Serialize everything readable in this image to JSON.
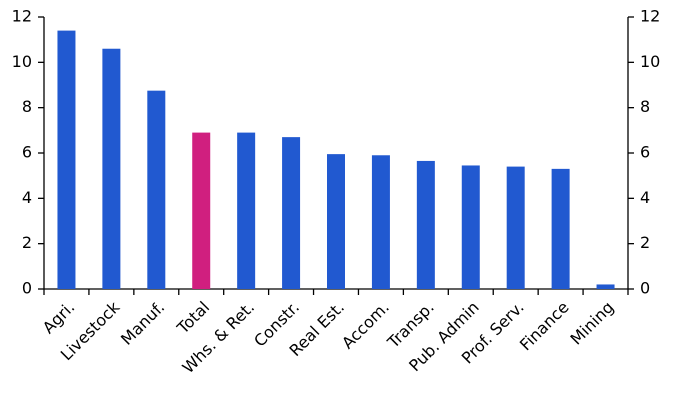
{
  "chart_data": {
    "type": "bar",
    "categories": [
      "Agri.",
      "Livestock",
      "Manuf.",
      "Total",
      "Whs. & Ret.",
      "Constr.",
      "Real Est.",
      "Accom.",
      "Transp.",
      "Pub. Admin",
      "Prof. Serv.",
      "Finance",
      "Mining"
    ],
    "values": [
      11.4,
      10.6,
      8.75,
      6.9,
      6.9,
      6.7,
      5.95,
      5.9,
      5.65,
      5.45,
      5.4,
      5.3,
      0.2
    ],
    "colors": [
      "#2159d0",
      "#2159d0",
      "#2159d0",
      "#d01f7f",
      "#2159d0",
      "#2159d0",
      "#2159d0",
      "#2159d0",
      "#2159d0",
      "#2159d0",
      "#2159d0",
      "#2159d0",
      "#2159d0"
    ],
    "ylim": [
      0,
      12
    ],
    "yticks": [
      0,
      2,
      4,
      6,
      8,
      10,
      12
    ],
    "y2lim": [
      0,
      12
    ],
    "y2ticks": [
      0,
      2,
      4,
      6,
      8,
      10,
      12
    ]
  }
}
